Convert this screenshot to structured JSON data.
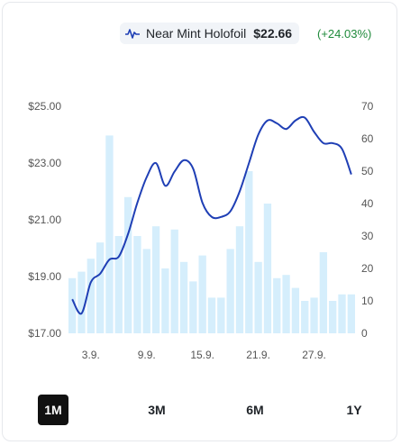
{
  "header": {
    "icon": "pulse-icon",
    "variant": "Near Mint Holofoil",
    "price": "$22.66",
    "change": "(+24.03%)"
  },
  "ranges": [
    {
      "label": "1M",
      "active": true
    },
    {
      "label": "3M",
      "active": false
    },
    {
      "label": "6M",
      "active": false
    },
    {
      "label": "1Y",
      "active": false
    }
  ],
  "colors": {
    "line": "#1f3fb5",
    "bar": "#d5eefc",
    "positive": "#1f8a3b",
    "active_range": "#111111"
  },
  "chart_data": {
    "type": "bar",
    "title": "",
    "xlabel": "",
    "ylabel": "",
    "x_ticks": [
      "3.9.",
      "9.9.",
      "15.9.",
      "21.9.",
      "27.9."
    ],
    "y_left": {
      "ticks": [
        "$25.00",
        "$23.00",
        "$21.00",
        "$19.00",
        "$17.00"
      ],
      "lim": [
        17,
        25
      ]
    },
    "y_right": {
      "ticks": [
        "70",
        "60",
        "50",
        "40",
        "30",
        "20",
        "10",
        "0"
      ],
      "lim": [
        0,
        70
      ]
    },
    "days": [
      1,
      2,
      3,
      4,
      5,
      6,
      7,
      8,
      9,
      10,
      11,
      12,
      13,
      14,
      15,
      16,
      17,
      18,
      19,
      20,
      21,
      22,
      23,
      24,
      25,
      26,
      27,
      28,
      29,
      30,
      31
    ],
    "series": [
      {
        "type": "bar",
        "axis": "right",
        "values": [
          17,
          19,
          23,
          28,
          61,
          30,
          42,
          30,
          26,
          33,
          20,
          32,
          22,
          16,
          24,
          11,
          11,
          26,
          33,
          50,
          22,
          40,
          17,
          18,
          14,
          10,
          11,
          25,
          10,
          12,
          12
        ]
      },
      {
        "type": "line",
        "axis": "left",
        "values": [
          18.2,
          17.7,
          18.8,
          19.1,
          19.6,
          19.7,
          20.5,
          21.6,
          22.5,
          23.0,
          22.2,
          22.7,
          23.1,
          22.8,
          21.6,
          21.1,
          21.1,
          21.3,
          22.0,
          23.0,
          24.0,
          24.5,
          24.4,
          24.2,
          24.5,
          24.6,
          24.1,
          23.7,
          23.7,
          23.5,
          22.6
        ]
      }
    ],
    "grid": false,
    "legend": "none"
  }
}
